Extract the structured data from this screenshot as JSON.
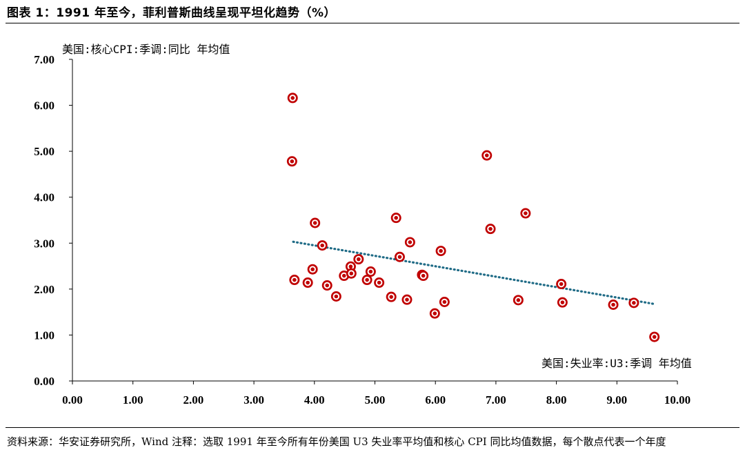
{
  "header": {
    "title": "图表 1：1991 年至今，菲利普斯曲线呈现平坦化趋势（%）"
  },
  "footer": {
    "source": "资料来源：华安证券研究所，Wind",
    "note": "注释：选取 1991 年至今所有年份美国 U3 失业率平均值和核心 CPI 同比均值数据，每个散点代表一个年度"
  },
  "chart_data": {
    "type": "scatter",
    "xlabel": "美国:失业率:U3:季调 年均值",
    "ylabel": "美国:核心CPI:季调:同比 年均值",
    "xlim": [
      0,
      10
    ],
    "ylim": [
      0,
      7
    ],
    "x_ticks": [
      "0.00",
      "1.00",
      "2.00",
      "3.00",
      "4.00",
      "5.00",
      "6.00",
      "7.00",
      "8.00",
      "9.00",
      "10.00"
    ],
    "y_ticks": [
      "0.00",
      "1.00",
      "2.00",
      "3.00",
      "4.00",
      "5.00",
      "6.00",
      "7.00"
    ],
    "grid": false,
    "trendline": {
      "style": "dotted",
      "color": "#1f6b86",
      "x": [
        3.65,
        9.6
      ],
      "y": [
        3.03,
        1.68
      ]
    },
    "marker_color": "#c00000",
    "points": [
      {
        "x": 3.64,
        "y": 6.16
      },
      {
        "x": 3.63,
        "y": 4.78
      },
      {
        "x": 3.67,
        "y": 2.2
      },
      {
        "x": 3.89,
        "y": 2.14
      },
      {
        "x": 3.97,
        "y": 2.43
      },
      {
        "x": 4.01,
        "y": 3.44
      },
      {
        "x": 4.13,
        "y": 2.95
      },
      {
        "x": 4.21,
        "y": 2.08
      },
      {
        "x": 4.36,
        "y": 1.84
      },
      {
        "x": 4.49,
        "y": 2.29
      },
      {
        "x": 4.6,
        "y": 2.49
      },
      {
        "x": 4.61,
        "y": 2.34
      },
      {
        "x": 4.73,
        "y": 2.65
      },
      {
        "x": 4.87,
        "y": 2.2
      },
      {
        "x": 4.93,
        "y": 2.38
      },
      {
        "x": 5.07,
        "y": 2.14
      },
      {
        "x": 5.27,
        "y": 1.83
      },
      {
        "x": 5.35,
        "y": 3.55
      },
      {
        "x": 5.41,
        "y": 2.7
      },
      {
        "x": 5.53,
        "y": 1.77
      },
      {
        "x": 5.58,
        "y": 3.02
      },
      {
        "x": 5.78,
        "y": 2.31
      },
      {
        "x": 5.8,
        "y": 2.29
      },
      {
        "x": 5.99,
        "y": 1.47
      },
      {
        "x": 6.09,
        "y": 2.83
      },
      {
        "x": 6.15,
        "y": 1.72
      },
      {
        "x": 6.85,
        "y": 4.91
      },
      {
        "x": 6.91,
        "y": 3.31
      },
      {
        "x": 7.37,
        "y": 1.76
      },
      {
        "x": 7.49,
        "y": 3.65
      },
      {
        "x": 8.08,
        "y": 2.11
      },
      {
        "x": 8.1,
        "y": 1.71
      },
      {
        "x": 8.94,
        "y": 1.66
      },
      {
        "x": 9.28,
        "y": 1.7
      },
      {
        "x": 9.62,
        "y": 0.96
      }
    ]
  }
}
